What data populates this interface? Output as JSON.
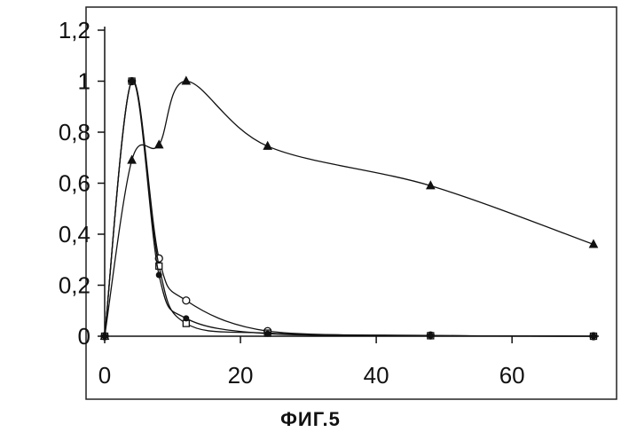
{
  "figure_caption": "ФИГ.5",
  "chart_data": {
    "type": "line",
    "title": "",
    "xlabel": "",
    "ylabel": "",
    "xlim": [
      0,
      72
    ],
    "ylim": [
      0,
      1.2
    ],
    "grid": false,
    "legend": "none",
    "x_ticks": [
      "0",
      "20",
      "40",
      "60"
    ],
    "y_ticks": [
      "0",
      "0,2",
      "0,4",
      "0,6",
      "0,8",
      "1",
      "1,2"
    ],
    "series": [
      {
        "marker": "triangle-filled",
        "x": [
          0,
          4,
          8,
          12,
          24,
          48,
          72
        ],
        "y": [
          0,
          0.69,
          0.75,
          1.0,
          0.745,
          0.59,
          0.36
        ]
      },
      {
        "marker": "circle-open",
        "x": [
          0,
          4,
          8,
          12,
          24,
          48,
          72
        ],
        "y": [
          0,
          1.0,
          0.305,
          0.14,
          0.02,
          0.003,
          0.0
        ]
      },
      {
        "marker": "square-open",
        "x": [
          0,
          4,
          8,
          12,
          24,
          48,
          72
        ],
        "y": [
          0,
          1.0,
          0.275,
          0.05,
          0.012,
          0.002,
          0.0
        ]
      },
      {
        "marker": "circle-filled",
        "x": [
          0,
          4,
          8,
          12,
          24,
          48,
          72
        ],
        "y": [
          0,
          1.0,
          0.24,
          0.07,
          0.01,
          0.002,
          0.0
        ]
      }
    ]
  }
}
